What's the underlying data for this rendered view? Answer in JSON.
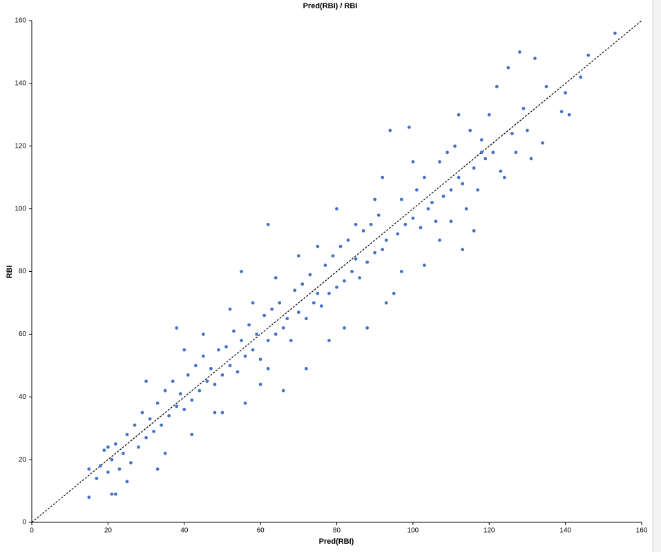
{
  "chart_data": {
    "type": "scatter",
    "title": "Pred(RBI) / RBI",
    "x_label": "Pred(RBI)",
    "y_label": "RBI",
    "xlim": [
      0,
      160
    ],
    "ylim": [
      0,
      160
    ],
    "xticks": [
      0,
      20,
      40,
      60,
      80,
      100,
      120,
      140,
      160
    ],
    "yticks": [
      0,
      20,
      40,
      60,
      80,
      100,
      120,
      140,
      160
    ],
    "series": [
      {
        "color": "#4472c4",
        "x": [
          15,
          15,
          17,
          18,
          19,
          20,
          21,
          22,
          21,
          22,
          23,
          24,
          25,
          26,
          27,
          28,
          29,
          30,
          31,
          32,
          33,
          34,
          35,
          36,
          37,
          38,
          39,
          40,
          41,
          42,
          43,
          44,
          45,
          46,
          47,
          48,
          49,
          50,
          51,
          52,
          53,
          54,
          55,
          56,
          57,
          58,
          59,
          60,
          61,
          62,
          63,
          64,
          65,
          66,
          67,
          68,
          69,
          70,
          71,
          72,
          73,
          74,
          75,
          76,
          77,
          78,
          79,
          80,
          81,
          82,
          83,
          84,
          85,
          86,
          87,
          88,
          89,
          90,
          91,
          92,
          93,
          94,
          95,
          96,
          97,
          98,
          99,
          100,
          101,
          102,
          103,
          104,
          105,
          106,
          107,
          108,
          109,
          110,
          111,
          112,
          113,
          114,
          115,
          116,
          117,
          118,
          119,
          120,
          121,
          122,
          123,
          125,
          126,
          127,
          128,
          129,
          130,
          132,
          134,
          135,
          139,
          140,
          141,
          144,
          146,
          153,
          62,
          20,
          25,
          30,
          33,
          35,
          38,
          40,
          42,
          45,
          48,
          50,
          52,
          55,
          56,
          58,
          60,
          62,
          64,
          66,
          70,
          72,
          75,
          78,
          80,
          82,
          85,
          88,
          90,
          93,
          92,
          97,
          100,
          103,
          107,
          110,
          113,
          116,
          112,
          118,
          124,
          131
        ],
        "values": [
          8,
          17,
          14,
          18,
          23,
          16,
          9,
          9,
          20,
          25,
          17,
          22,
          28,
          19,
          31,
          24,
          35,
          27,
          33,
          29,
          38,
          31,
          42,
          34,
          45,
          37,
          41,
          36,
          47,
          39,
          50,
          42,
          53,
          45,
          49,
          44,
          55,
          47,
          56,
          50,
          61,
          48,
          58,
          53,
          63,
          55,
          60,
          52,
          66,
          58,
          68,
          60,
          70,
          62,
          65,
          58,
          74,
          67,
          76,
          65,
          79,
          70,
          73,
          69,
          82,
          73,
          85,
          75,
          88,
          77,
          90,
          80,
          84,
          78,
          93,
          83,
          95,
          86,
          98,
          87,
          90,
          125,
          73,
          92,
          103,
          95,
          126,
          97,
          106,
          94,
          110,
          100,
          102,
          96,
          115,
          104,
          118,
          106,
          120,
          110,
          108,
          100,
          125,
          113,
          106,
          122,
          116,
          130,
          118,
          139,
          112,
          145,
          124,
          118,
          150,
          132,
          125,
          148,
          121,
          139,
          131,
          137,
          130,
          142,
          149,
          156,
          95,
          24,
          13,
          45,
          17,
          22,
          62,
          55,
          28,
          60,
          35,
          35,
          68,
          80,
          38,
          70,
          44,
          49,
          78,
          42,
          85,
          49,
          88,
          58,
          100,
          62,
          95,
          62,
          103,
          70,
          110,
          80,
          115,
          82,
          90,
          96,
          87,
          93,
          130,
          118,
          110,
          116
        ]
      }
    ]
  }
}
